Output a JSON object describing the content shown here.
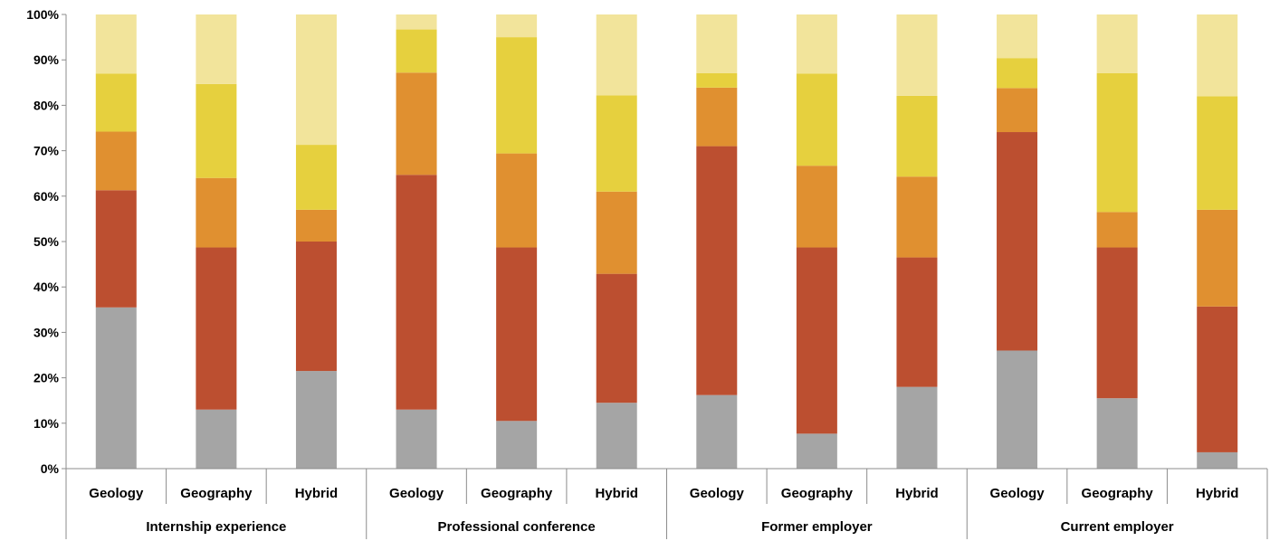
{
  "chart_data": {
    "type": "bar",
    "stacked": true,
    "normalized": true,
    "groups": [
      {
        "label": "Internship experience",
        "categories": [
          "Geology",
          "Geography",
          "Hybrid"
        ]
      },
      {
        "label": "Professional conference",
        "categories": [
          "Geology",
          "Geography",
          "Hybrid"
        ]
      },
      {
        "label": "Former employer",
        "categories": [
          "Geology",
          "Geography",
          "Hybrid"
        ]
      },
      {
        "label": "Current employer",
        "categories": [
          "Geology",
          "Geography",
          "Hybrid"
        ]
      }
    ],
    "series": [
      {
        "color": "#a5a5a5",
        "values": [
          35.5,
          13.0,
          21.5,
          13.0,
          10.5,
          14.5,
          16.2,
          7.7,
          18.0,
          26.0,
          15.5,
          3.6
        ]
      },
      {
        "color": "#bc4f30",
        "values": [
          25.8,
          35.7,
          28.5,
          51.7,
          38.2,
          28.4,
          54.8,
          41.0,
          28.5,
          48.1,
          33.2,
          32.1
        ]
      },
      {
        "color": "#e09030",
        "values": [
          12.9,
          15.3,
          7.0,
          22.5,
          20.7,
          18.1,
          12.9,
          18.0,
          17.8,
          9.7,
          7.8,
          21.3
        ]
      },
      {
        "color": "#e6d03e",
        "values": [
          12.8,
          20.7,
          14.3,
          9.5,
          25.6,
          21.2,
          3.2,
          20.3,
          17.8,
          6.6,
          30.6,
          25.0
        ]
      },
      {
        "color": "#f2e49b",
        "values": [
          13.0,
          15.3,
          28.7,
          3.3,
          5.0,
          17.8,
          12.9,
          13.0,
          17.9,
          9.6,
          12.9,
          18.0
        ]
      }
    ],
    "yticks": [
      "0%",
      "10%",
      "20%",
      "30%",
      "40%",
      "50%",
      "60%",
      "70%",
      "80%",
      "90%",
      "100%"
    ],
    "ylim": [
      0,
      100
    ],
    "grid": false,
    "legend": "none"
  }
}
